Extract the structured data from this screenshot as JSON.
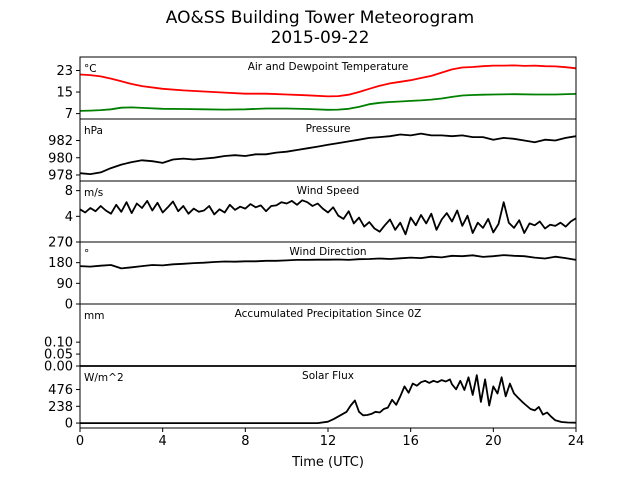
{
  "figure": {
    "title_line1": "AO&SS Building Tower Meteorogram",
    "title_line2": "2015-09-22",
    "xlabel": "Time (UTC)",
    "x_ticks": [
      0,
      4,
      8,
      12,
      16,
      20,
      24
    ],
    "xlim": [
      0,
      24
    ]
  },
  "chart_data": [
    {
      "type": "line",
      "title": "Air and Dewpoint Temperature",
      "unit_label": "°C",
      "ylim": [
        5,
        28
      ],
      "y_ticks": [
        7,
        15,
        23
      ],
      "series": [
        {
          "color": "#ff0000",
          "x": [
            0,
            0.5,
            1,
            1.5,
            2,
            2.5,
            3,
            4,
            5,
            6,
            7,
            8,
            9,
            10,
            11,
            12,
            12.5,
            13,
            13.5,
            14,
            14.5,
            15,
            15.5,
            16,
            16.5,
            17,
            17.5,
            18,
            18.5,
            19,
            19.5,
            20,
            20.5,
            21,
            21.5,
            22,
            22.5,
            23,
            23.5,
            24
          ],
          "y": [
            21.5,
            21.3,
            20.8,
            20,
            19,
            18,
            17.2,
            16.2,
            15.6,
            15.2,
            14.8,
            14.4,
            14.4,
            14.1,
            13.8,
            13.4,
            13.5,
            14,
            15,
            16.2,
            17.3,
            18.2,
            18.8,
            19.4,
            20.2,
            21,
            22.2,
            23.4,
            24.1,
            24.3,
            24.6,
            24.8,
            24.8,
            24.9,
            24.7,
            24.8,
            24.6,
            24.5,
            24.2,
            23.8
          ]
        },
        {
          "color": "#008000",
          "x": [
            0,
            0.5,
            1,
            1.5,
            2,
            2.5,
            3,
            4,
            5,
            6,
            7,
            8,
            9,
            10,
            11,
            12,
            12.5,
            13,
            13.5,
            14,
            14.5,
            15,
            15.5,
            16,
            16.5,
            17,
            17.5,
            18,
            18.5,
            19,
            19.5,
            20,
            21,
            22,
            23,
            24
          ],
          "y": [
            8,
            8.1,
            8.3,
            8.6,
            9.2,
            9.3,
            9.1,
            8.8,
            8.7,
            8.6,
            8.5,
            8.6,
            8.9,
            8.9,
            8.7,
            8.4,
            8.5,
            8.8,
            9.5,
            10.5,
            11,
            11.3,
            11.5,
            11.7,
            11.9,
            12.2,
            12.6,
            13.2,
            13.7,
            13.9,
            14,
            14.1,
            14.2,
            14.1,
            14.1,
            14.3
          ]
        }
      ]
    },
    {
      "type": "line",
      "title": "Pressure",
      "unit_label": "hPa",
      "ylim": [
        977.3,
        984.5
      ],
      "y_ticks": [
        978,
        980,
        982
      ],
      "series": [
        {
          "color": "#000000",
          "x": [
            0,
            0.5,
            1,
            1.5,
            2,
            2.5,
            3,
            3.5,
            4,
            4.5,
            5,
            5.5,
            6,
            6.5,
            7,
            7.5,
            8,
            8.5,
            9,
            9.5,
            10,
            10.5,
            11,
            11.5,
            12,
            12.5,
            13,
            13.5,
            14,
            14.5,
            15,
            15.5,
            16,
            16.5,
            17,
            17.5,
            18,
            18.5,
            19,
            19.5,
            20,
            20.5,
            21,
            21.5,
            22,
            22.5,
            23,
            23.5,
            24
          ],
          "y": [
            978.2,
            978.1,
            978.3,
            978.8,
            979.2,
            979.5,
            979.7,
            979.6,
            979.4,
            979.8,
            979.9,
            979.8,
            979.9,
            980.0,
            980.2,
            980.3,
            980.2,
            980.4,
            980.4,
            980.6,
            980.7,
            980.9,
            981.1,
            981.3,
            981.5,
            981.7,
            981.9,
            982.1,
            982.3,
            982.4,
            982.5,
            982.7,
            982.6,
            982.8,
            982.6,
            982.6,
            982.5,
            982.6,
            982.4,
            982.4,
            982.1,
            982.3,
            982.2,
            982.0,
            981.8,
            982.1,
            982.0,
            982.3,
            982.5
          ]
        }
      ]
    },
    {
      "type": "line",
      "title": "Wind Speed",
      "unit_label": "m/s",
      "ylim": [
        0,
        9.5
      ],
      "y_ticks": [
        0,
        4,
        8
      ],
      "series": [
        {
          "color": "#000000",
          "x": [
            0,
            0.25,
            0.5,
            0.75,
            1,
            1.25,
            1.5,
            1.75,
            2,
            2.25,
            2.5,
            2.75,
            3,
            3.25,
            3.5,
            3.75,
            4,
            4.25,
            4.5,
            4.75,
            5,
            5.25,
            5.5,
            5.75,
            6,
            6.25,
            6.5,
            6.75,
            7,
            7.25,
            7.5,
            7.75,
            8,
            8.25,
            8.5,
            8.75,
            9,
            9.25,
            9.5,
            9.75,
            10,
            10.25,
            10.5,
            10.75,
            11,
            11.25,
            11.5,
            11.75,
            12,
            12.25,
            12.5,
            12.75,
            13,
            13.25,
            13.5,
            13.75,
            14,
            14.25,
            14.5,
            14.75,
            15,
            15.25,
            15.5,
            15.75,
            16,
            16.25,
            16.5,
            16.75,
            17,
            17.25,
            17.5,
            17.75,
            18,
            18.25,
            18.5,
            18.75,
            19,
            19.25,
            19.5,
            19.75,
            20,
            20.25,
            20.5,
            20.75,
            21,
            21.25,
            21.5,
            21.75,
            22,
            22.25,
            22.5,
            22.75,
            23,
            23.25,
            23.5,
            23.75,
            24
          ],
          "y": [
            5.1,
            4.6,
            5.3,
            4.8,
            5.6,
            4.9,
            4.4,
            5.8,
            4.7,
            6.2,
            4.5,
            6.0,
            5.3,
            6.4,
            4.9,
            6.1,
            4.6,
            5.4,
            6.3,
            4.8,
            5.6,
            4.4,
            5.2,
            4.7,
            4.9,
            5.6,
            4.3,
            5.1,
            4.6,
            5.8,
            5.0,
            5.5,
            5.2,
            5.9,
            5.4,
            5.7,
            4.8,
            5.6,
            5.7,
            6.2,
            6.0,
            6.4,
            5.8,
            6.5,
            6.2,
            5.6,
            6.0,
            5.2,
            4.6,
            5.4,
            4.1,
            3.6,
            4.8,
            2.9,
            3.8,
            2.4,
            3.1,
            2.1,
            1.6,
            2.6,
            3.5,
            1.9,
            3.0,
            1.2,
            3.8,
            2.6,
            4.2,
            2.9,
            4.4,
            1.9,
            3.5,
            4.5,
            3.2,
            4.9,
            2.5,
            4.1,
            1.4,
            3.0,
            2.2,
            3.6,
            1.5,
            2.8,
            6.2,
            3.0,
            2.2,
            3.4,
            1.4,
            2.9,
            2.6,
            3.2,
            2.1,
            2.7,
            2.5,
            3.0,
            2.4,
            3.2,
            3.7
          ]
        }
      ]
    },
    {
      "type": "line",
      "title": "Wind Direction",
      "unit_label": "°",
      "ylim": [
        0,
        270
      ],
      "y_ticks": [
        0,
        90,
        180,
        270
      ],
      "series": [
        {
          "color": "#000000",
          "x": [
            0,
            0.5,
            1,
            1.5,
            2,
            2.5,
            3,
            3.5,
            4,
            4.5,
            5,
            5.5,
            6,
            6.5,
            7,
            7.5,
            8,
            8.5,
            9,
            9.5,
            10,
            10.5,
            11,
            11.5,
            12,
            12.5,
            13,
            13.5,
            14,
            14.5,
            15,
            15.5,
            16,
            16.5,
            17,
            17.5,
            18,
            18.5,
            19,
            19.5,
            20,
            20.5,
            21,
            21.5,
            22,
            22.5,
            23,
            23.5,
            24
          ],
          "y": [
            165,
            163,
            167,
            170,
            155,
            160,
            165,
            170,
            168,
            173,
            175,
            178,
            180,
            183,
            185,
            184,
            186,
            186,
            188,
            188,
            190,
            192,
            192,
            193,
            193,
            194,
            192,
            195,
            196,
            198,
            196,
            199,
            202,
            200,
            206,
            203,
            210,
            208,
            212,
            205,
            208,
            213,
            210,
            208,
            202,
            198,
            206,
            200,
            192
          ]
        }
      ]
    },
    {
      "type": "line",
      "title": "Accumulated Precipitation Since 0Z",
      "unit_label": "mm",
      "ylim": [
        0,
        0.26
      ],
      "y_ticks": [
        0.0,
        0.05,
        0.1
      ],
      "series": [
        {
          "color": "#000000",
          "x": [
            0,
            24
          ],
          "y": [
            0,
            0
          ]
        }
      ]
    },
    {
      "type": "line",
      "title": "Solar Flux",
      "unit_label": "W/m^2",
      "ylim": [
        -70,
        810
      ],
      "y_ticks": [
        0,
        238,
        476
      ],
      "series": [
        {
          "color": "#000000",
          "x": [
            0,
            2,
            4,
            6,
            8,
            10,
            11,
            11.5,
            12,
            12.3,
            12.6,
            12.9,
            13.1,
            13.3,
            13.5,
            13.7,
            13.9,
            14.1,
            14.3,
            14.5,
            14.7,
            14.9,
            15.1,
            15.3,
            15.5,
            15.7,
            15.9,
            16.1,
            16.3,
            16.5,
            16.7,
            16.9,
            17.1,
            17.3,
            17.5,
            17.7,
            17.9,
            18,
            18.2,
            18.4,
            18.6,
            18.8,
            19,
            19.2,
            19.4,
            19.6,
            19.8,
            20,
            20.2,
            20.4,
            20.6,
            20.8,
            21,
            21.2,
            21.4,
            21.6,
            21.8,
            22,
            22.2,
            22.4,
            22.6,
            22.8,
            23,
            23.3,
            23.6,
            24
          ],
          "y": [
            0,
            0,
            0,
            0,
            0,
            0,
            0,
            0,
            20,
            60,
            110,
            160,
            250,
            320,
            160,
            110,
            115,
            130,
            160,
            150,
            200,
            220,
            330,
            260,
            380,
            520,
            430,
            560,
            530,
            580,
            600,
            570,
            600,
            580,
            610,
            590,
            620,
            550,
            480,
            600,
            470,
            650,
            400,
            680,
            300,
            620,
            250,
            520,
            420,
            650,
            380,
            560,
            420,
            360,
            300,
            250,
            200,
            180,
            230,
            120,
            150,
            90,
            40,
            15,
            8,
            5
          ]
        }
      ]
    }
  ]
}
